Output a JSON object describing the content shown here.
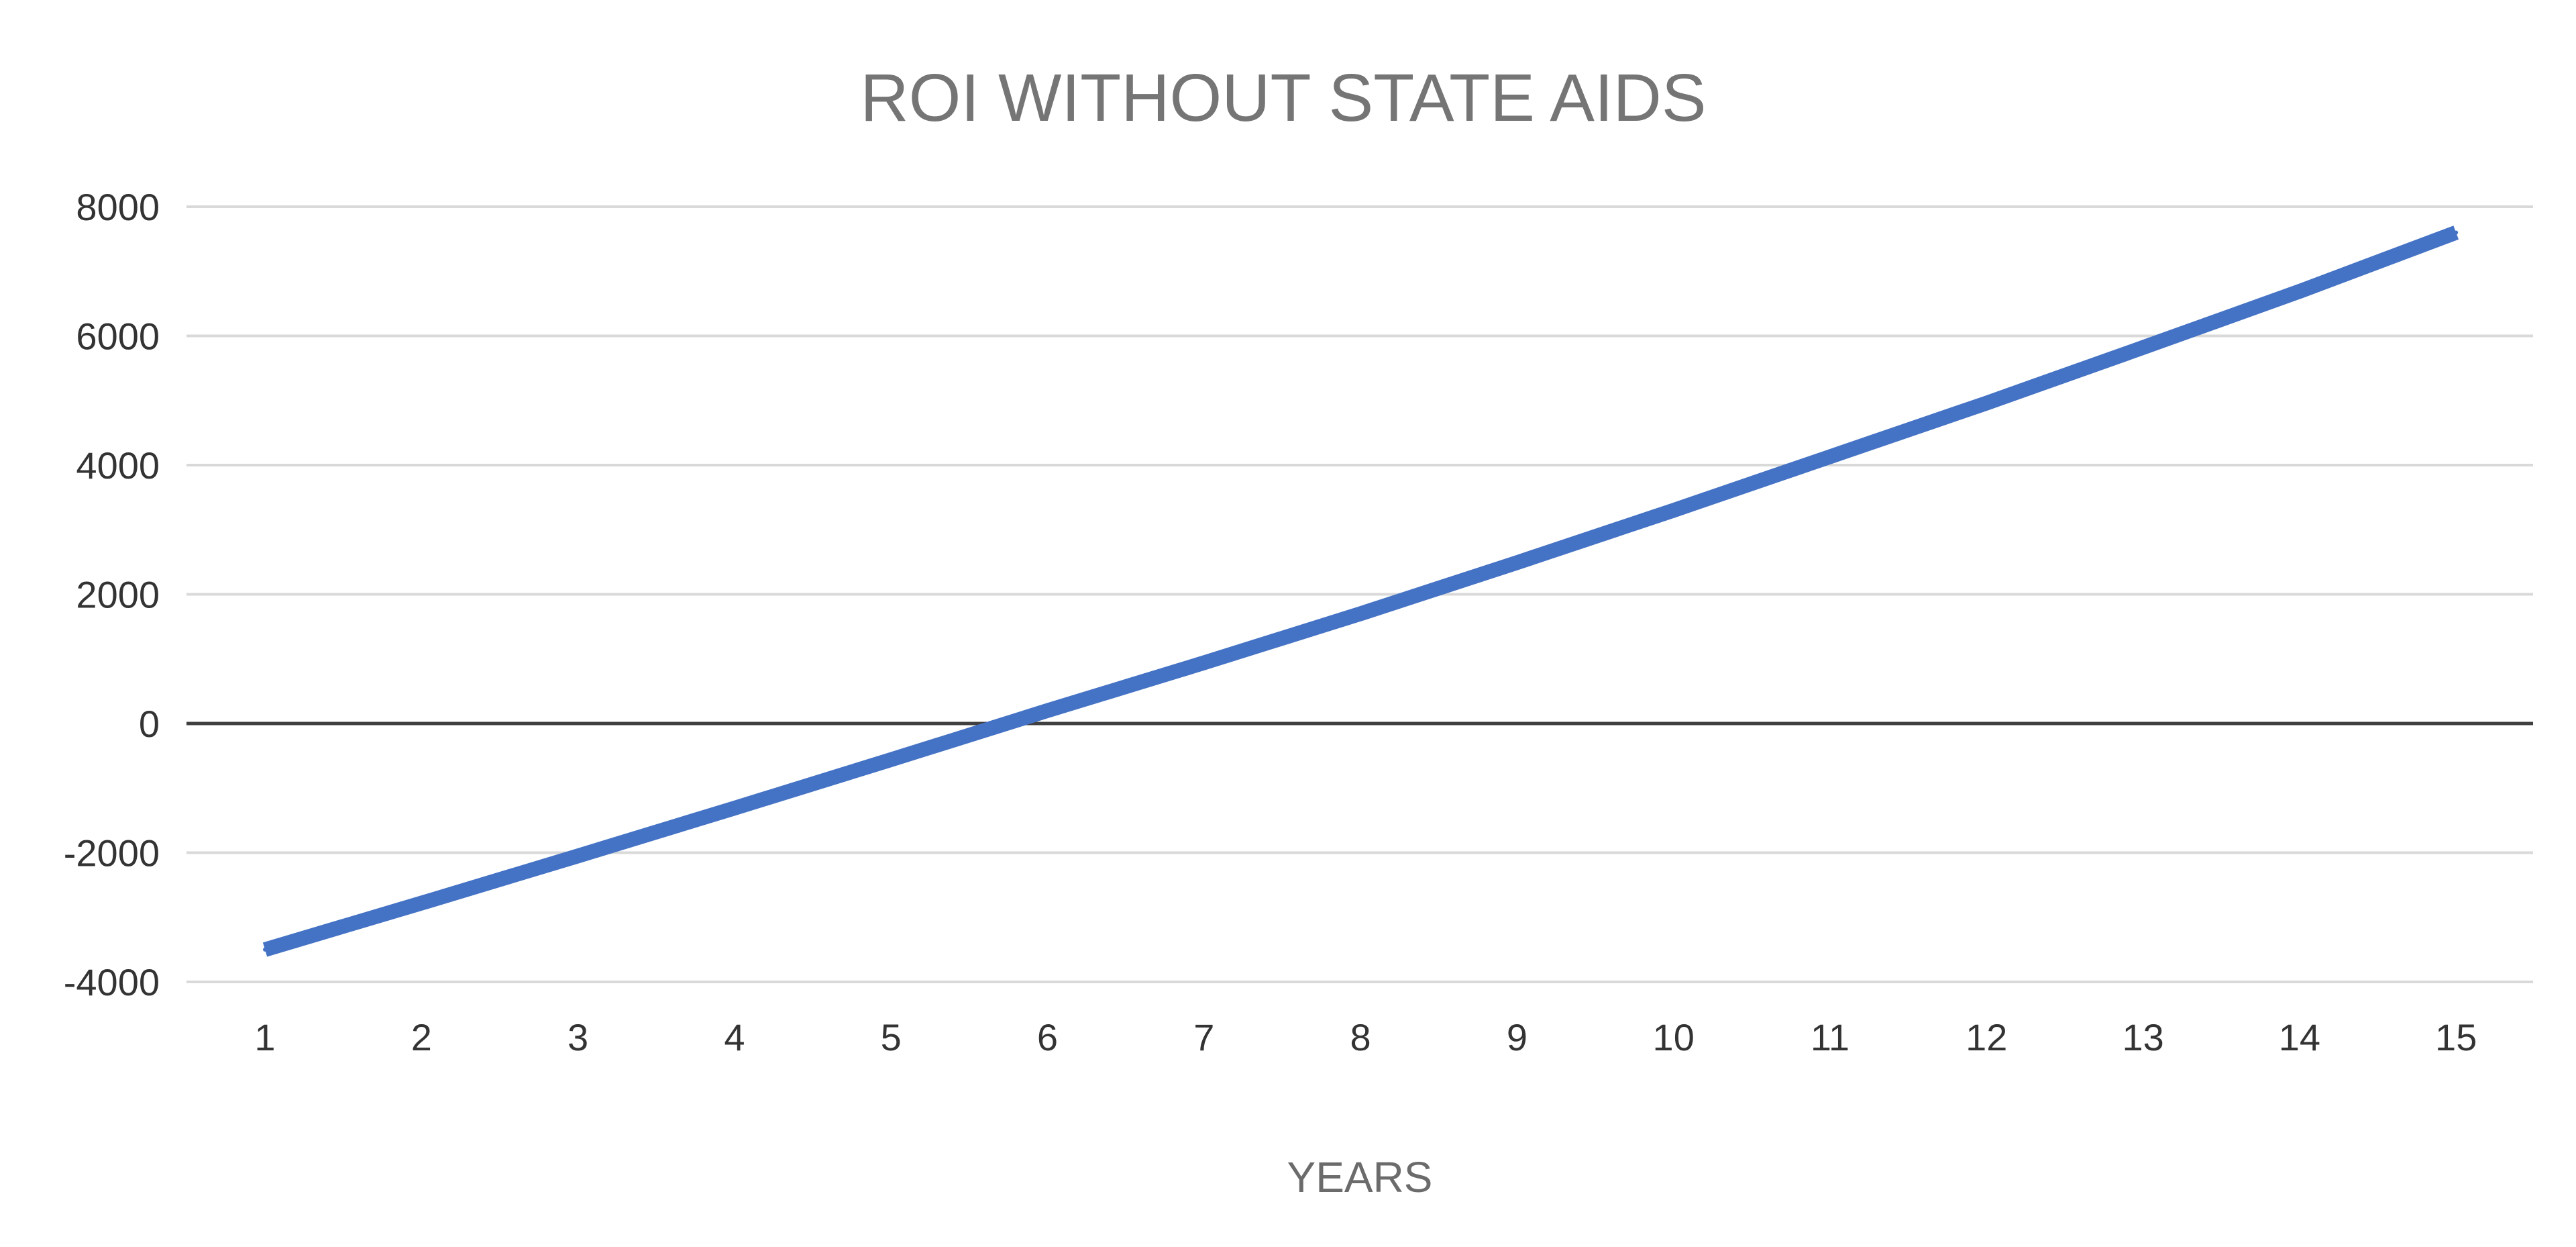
{
  "chart_data": {
    "type": "line",
    "title": "ROI WITHOUT STATE AIDS",
    "xlabel": "YEARS",
    "ylabel": "",
    "categories": [
      "1",
      "2",
      "3",
      "4",
      "5",
      "6",
      "7",
      "8",
      "9",
      "10",
      "11",
      "12",
      "13",
      "14",
      "15"
    ],
    "series": [
      {
        "values": [
          -3500,
          -2780,
          -2050,
          -1310,
          -560,
          200,
          940,
          1700,
          2490,
          3300,
          4130,
          4960,
          5820,
          6690,
          7600
        ],
        "color": "#4472c4"
      }
    ],
    "ylim": [
      -4000,
      8000
    ],
    "yticks": [
      -4000,
      -2000,
      0,
      2000,
      4000,
      6000,
      8000
    ],
    "grid": true,
    "legend": "none",
    "colors": {
      "gridline": "#d9d9d9",
      "zero_line": "#404040"
    }
  }
}
